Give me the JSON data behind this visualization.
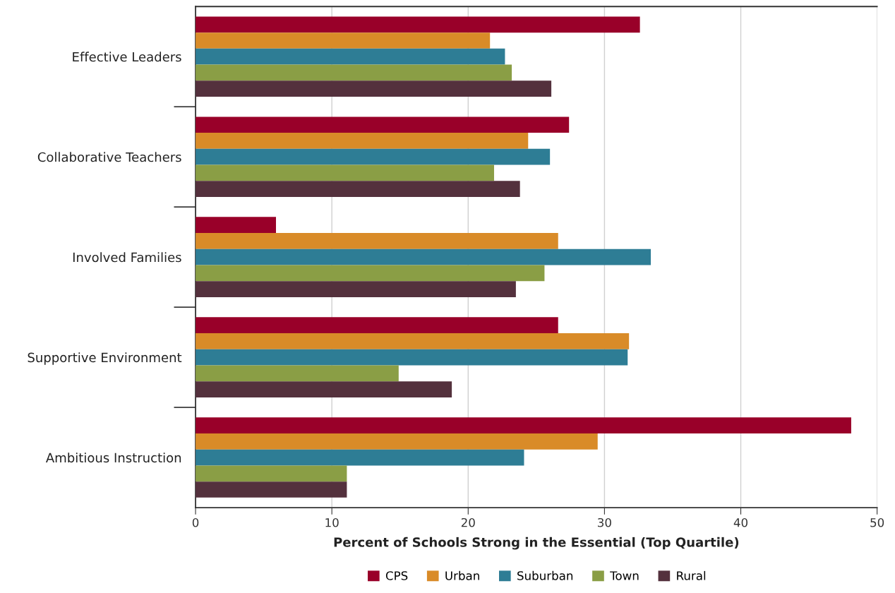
{
  "chart_data": {
    "type": "bar",
    "orientation": "horizontal",
    "xlabel": "Percent of Schools Strong in the Essential (Top Quartile)",
    "categories": [
      "Effective Leaders",
      "Collaborative Teachers",
      "Involved Families",
      "Supportive Environment",
      "Ambitious Instruction"
    ],
    "series": [
      {
        "name": "CPS",
        "color": "#990029",
        "values": [
          32.6,
          27.4,
          5.9,
          26.6,
          48.1
        ]
      },
      {
        "name": "Urban",
        "color": "#d98b28",
        "values": [
          21.6,
          24.4,
          26.6,
          31.8,
          29.5
        ]
      },
      {
        "name": "Suburban",
        "color": "#2e7d95",
        "values": [
          22.7,
          26.0,
          33.4,
          31.7,
          24.1
        ]
      },
      {
        "name": "Town",
        "color": "#8a9e45",
        "values": [
          23.2,
          21.9,
          25.6,
          14.9,
          11.1
        ]
      },
      {
        "name": "Rural",
        "color": "#54313d",
        "values": [
          26.1,
          23.8,
          23.5,
          18.8,
          11.1
        ]
      }
    ],
    "xlim": [
      0,
      50
    ],
    "xticks": [
      0,
      10,
      20,
      30,
      40,
      50
    ],
    "grid": "x",
    "legend": "bottom"
  }
}
